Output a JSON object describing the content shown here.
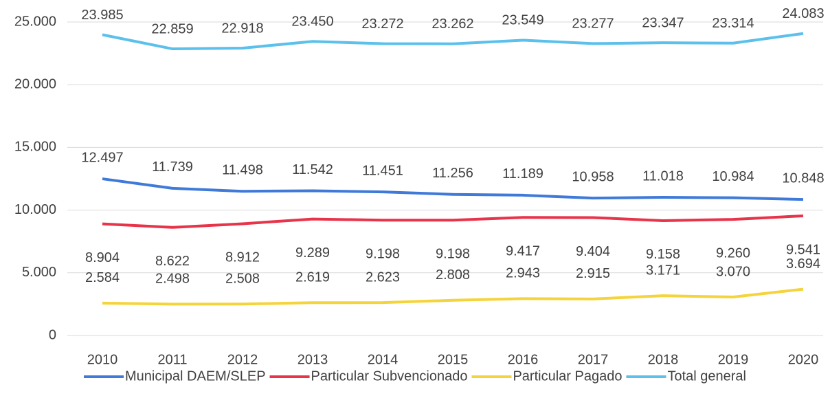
{
  "chart_data": {
    "type": "line",
    "categories": [
      "2010",
      "2011",
      "2012",
      "2013",
      "2014",
      "2015",
      "2016",
      "2017",
      "2018",
      "2019",
      "2020"
    ],
    "series": [
      {
        "name": "Municipal DAEM/SLEP",
        "color": "#3f7ad9",
        "values": [
          12497,
          11739,
          11498,
          11542,
          11451,
          11256,
          11189,
          10958,
          11018,
          10984,
          10848
        ],
        "value_labels": [
          "12.497",
          "11.739",
          "11.498",
          "11.542",
          "11.451",
          "11.256",
          "11.189",
          "10.958",
          "11.018",
          "10.984",
          "10.848"
        ]
      },
      {
        "name": "Particular Subvencionado",
        "color": "#e8344a",
        "values": [
          8904,
          8622,
          8912,
          9289,
          9198,
          9198,
          9417,
          9404,
          9158,
          9260,
          9541
        ],
        "value_labels": [
          "8.904",
          "8.622",
          "8.912",
          "9.289",
          "9.198",
          "9.198",
          "9.417",
          "9.404",
          "9.158",
          "9.260",
          "9.541"
        ]
      },
      {
        "name": "Particular Pagado",
        "color": "#f5d33a",
        "values": [
          2584,
          2498,
          2508,
          2619,
          2623,
          2808,
          2943,
          2915,
          3171,
          3070,
          3694
        ],
        "value_labels": [
          "2.584",
          "2.498",
          "2.508",
          "2.619",
          "2.623",
          "2.808",
          "2.943",
          "2.915",
          "3.171",
          "3.070",
          "3.694"
        ]
      },
      {
        "name": "Total general",
        "color": "#5bc0eb",
        "values": [
          23985,
          22859,
          22918,
          23450,
          23272,
          23262,
          23549,
          23277,
          23347,
          23314,
          24083
        ],
        "value_labels": [
          "23.985",
          "22.859",
          "22.918",
          "23.450",
          "23.272",
          "23.262",
          "23.549",
          "23.277",
          "23.347",
          "23.314",
          "24.083"
        ]
      }
    ],
    "ylim": [
      0,
      25000
    ],
    "yticks": [
      0,
      {
        "value": 5000,
        "label": "5.000"
      },
      {
        "value": 10000,
        "label": "10.000"
      },
      {
        "value": 15000,
        "label": "15.000"
      },
      {
        "value": 20000,
        "label": "20.000"
      },
      {
        "value": 25000,
        "label": "25.000"
      }
    ],
    "grid": true,
    "legend": "bottom"
  }
}
